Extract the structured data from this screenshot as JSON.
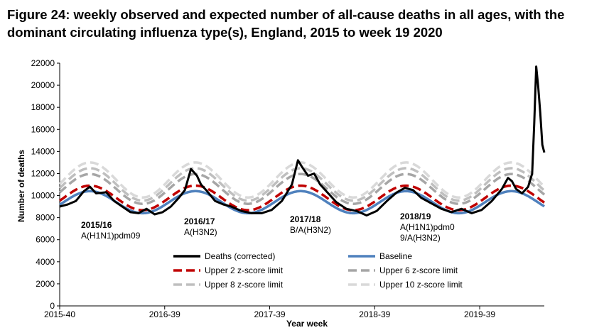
{
  "title": "Figure 24: weekly observed and expected number of all-cause deaths in all ages, with the dominant circulating influenza type(s), England, 2015 to week 19 2020",
  "chart_data": {
    "type": "line",
    "xlabel": "Year week",
    "ylabel": "Number of deaths",
    "ylim": [
      0,
      22000
    ],
    "yticks": [
      "0",
      "2000",
      "4000",
      "6000",
      "8000",
      "10000",
      "12000",
      "14000",
      "16000",
      "18000",
      "20000",
      "22000"
    ],
    "x_range": [
      "2015-40",
      "2020-19"
    ],
    "xticks": [
      "2015-40",
      "2016-39",
      "2017-39",
      "2018-39",
      "2019-39"
    ],
    "grid": false,
    "legend_position": "bottom",
    "colors": {
      "deaths": "#000000",
      "baseline": "#4f81bd",
      "z2": "#c00000",
      "z6": "#a6a6a6",
      "z8": "#bfbfbf",
      "z10": "#d9d9d9"
    },
    "series_labels": {
      "deaths": "Deaths (corrected)",
      "baseline": "Baseline",
      "z2": "Upper 2 z-score limit",
      "z6": "Upper 6 z-score limit",
      "z8": "Upper 8 z-score limit",
      "z10": "Upper 10 z-score limit"
    },
    "season_annotations": [
      {
        "season": "2015/16",
        "flu_lines": [
          "A(H1N1)pdm09"
        ]
      },
      {
        "season": "2016/17",
        "flu_lines": [
          "A(H3N2)"
        ]
      },
      {
        "season": "2017/18",
        "flu_lines": [
          "B/A(H3N2)"
        ]
      },
      {
        "season": "2018/19",
        "flu_lines": [
          "A(H1N1)pdm0",
          "9/A(H3N2)"
        ]
      }
    ],
    "deaths_key_points": [
      {
        "x": "2015-40",
        "y": 9000
      },
      {
        "x": "2015-44",
        "y": 9200
      },
      {
        "x": "2015-48",
        "y": 9500
      },
      {
        "x": "2015-52",
        "y": 10400
      },
      {
        "x": "2016-02",
        "y": 10800
      },
      {
        "x": "2016-05",
        "y": 10200
      },
      {
        "x": "2016-10",
        "y": 10300
      },
      {
        "x": "2016-14",
        "y": 9500
      },
      {
        "x": "2016-18",
        "y": 9000
      },
      {
        "x": "2016-22",
        "y": 8500
      },
      {
        "x": "2016-26",
        "y": 8400
      },
      {
        "x": "2016-30",
        "y": 8800
      },
      {
        "x": "2016-34",
        "y": 8300
      },
      {
        "x": "2016-38",
        "y": 8500
      },
      {
        "x": "2016-42",
        "y": 9000
      },
      {
        "x": "2016-46",
        "y": 9800
      },
      {
        "x": "2016-49",
        "y": 10500
      },
      {
        "x": "2016-52",
        "y": 12400
      },
      {
        "x": "2017-01",
        "y": 12200
      },
      {
        "x": "2017-03",
        "y": 11800
      },
      {
        "x": "2017-05",
        "y": 11000
      },
      {
        "x": "2017-08",
        "y": 10400
      },
      {
        "x": "2017-12",
        "y": 9500
      },
      {
        "x": "2017-16",
        "y": 9200
      },
      {
        "x": "2017-20",
        "y": 9000
      },
      {
        "x": "2017-25",
        "y": 8600
      },
      {
        "x": "2017-30",
        "y": 8400
      },
      {
        "x": "2017-35",
        "y": 8400
      },
      {
        "x": "2017-40",
        "y": 8700
      },
      {
        "x": "2017-45",
        "y": 9500
      },
      {
        "x": "2017-50",
        "y": 11000
      },
      {
        "x": "2018-01",
        "y": 13200
      },
      {
        "x": "2018-03",
        "y": 12600
      },
      {
        "x": "2018-06",
        "y": 11800
      },
      {
        "x": "2018-09",
        "y": 12000
      },
      {
        "x": "2018-12",
        "y": 11000
      },
      {
        "x": "2018-16",
        "y": 10200
      },
      {
        "x": "2018-20",
        "y": 9400
      },
      {
        "x": "2018-25",
        "y": 8800
      },
      {
        "x": "2018-30",
        "y": 8600
      },
      {
        "x": "2018-35",
        "y": 8200
      },
      {
        "x": "2018-40",
        "y": 8600
      },
      {
        "x": "2018-45",
        "y": 9500
      },
      {
        "x": "2018-50",
        "y": 10300
      },
      {
        "x": "2019-02",
        "y": 10700
      },
      {
        "x": "2019-06",
        "y": 10500
      },
      {
        "x": "2019-10",
        "y": 9800
      },
      {
        "x": "2019-15",
        "y": 9300
      },
      {
        "x": "2019-20",
        "y": 8800
      },
      {
        "x": "2019-25",
        "y": 8500
      },
      {
        "x": "2019-30",
        "y": 8800
      },
      {
        "x": "2019-35",
        "y": 8400
      },
      {
        "x": "2019-40",
        "y": 8700
      },
      {
        "x": "2019-45",
        "y": 9500
      },
      {
        "x": "2019-50",
        "y": 10600
      },
      {
        "x": "2020-01",
        "y": 11600
      },
      {
        "x": "2020-03",
        "y": 11300
      },
      {
        "x": "2020-05",
        "y": 10600
      },
      {
        "x": "2020-08",
        "y": 10200
      },
      {
        "x": "2020-11",
        "y": 10800
      },
      {
        "x": "2020-13",
        "y": 12000
      },
      {
        "x": "2020-14",
        "y": 16500
      },
      {
        "x": "2020-15",
        "y": 21700
      },
      {
        "x": "2020-16",
        "y": 19800
      },
      {
        "x": "2020-17",
        "y": 17500
      },
      {
        "x": "2020-18",
        "y": 14600
      },
      {
        "x": "2020-19",
        "y": 13900
      }
    ],
    "baseline_model": {
      "center": 9400,
      "amplitude": 1000,
      "peak_near": "early January"
    },
    "z_limit_offsets": {
      "z2": 500,
      "z6": 1550,
      "z8": 2080,
      "z10": 2600
    }
  }
}
